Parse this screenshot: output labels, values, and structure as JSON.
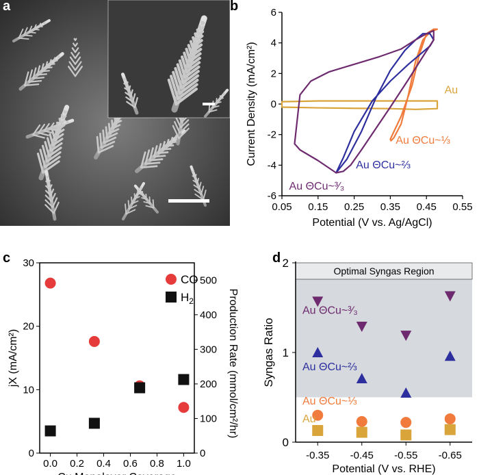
{
  "panels": {
    "a": {
      "letter": "a"
    },
    "b": {
      "letter": "b"
    },
    "c": {
      "letter": "c"
    },
    "d": {
      "letter": "d"
    }
  },
  "colors": {
    "au": "#d9a43a",
    "cu13": "#f07b3c",
    "cu23": "#2e2f9e",
    "cu33": "#6d2a6e",
    "co": "#e63b3b",
    "h2": "#111111",
    "region": "#d6d9dd"
  },
  "chart_data": [
    {
      "type": "line",
      "panel": "b",
      "xlabel": "Potential (V vs. Ag/AgCl)",
      "ylabel": "Current Density (mA/cm²)",
      "xlim": [
        0.05,
        0.55
      ],
      "ylim": [
        -6,
        6
      ],
      "xticks": [
        "0.05",
        "0.15",
        "0.25",
        "0.35",
        "0.45",
        "0.55"
      ],
      "yticks": [
        "-6",
        "-4",
        "-2",
        "0",
        "2",
        "4",
        "6"
      ],
      "annotations": [
        "Au",
        "Au ΘCu~⅓",
        "Au ΘCu~⅔",
        "Au ΘCu~³⁄₃"
      ],
      "series": [
        {
          "label": "Au",
          "color_key": "au",
          "x": [
            0.05,
            0.15,
            0.25,
            0.35,
            0.42,
            0.48,
            0.48,
            0.42,
            0.35,
            0.25,
            0.15,
            0.05
          ],
          "y": [
            0.15,
            0.2,
            0.2,
            0.2,
            0.2,
            0.2,
            -0.3,
            -0.35,
            -0.3,
            -0.28,
            -0.25,
            -0.2
          ]
        },
        {
          "label": "Au ΘCu~⅓",
          "color_key": "cu13",
          "x": [
            0.35,
            0.38,
            0.41,
            0.43,
            0.45,
            0.47,
            0.48,
            0.46,
            0.44,
            0.42,
            0.4,
            0.38,
            0.36,
            0.352
          ],
          "y": [
            -2.3,
            -0.8,
            1.2,
            3.2,
            4.6,
            4.9,
            4.9,
            4.7,
            4.2,
            2.8,
            0.6,
            -1.3,
            -2.2,
            -2.4
          ]
        },
        {
          "label": "Au ΘCu~⅔",
          "color_key": "cu23",
          "x": [
            0.2,
            0.23,
            0.27,
            0.31,
            0.35,
            0.39,
            0.42,
            0.44,
            0.46,
            0.47,
            0.46,
            0.44,
            0.4,
            0.35,
            0.3,
            0.25,
            0.22,
            0.2
          ],
          "y": [
            -4.5,
            -3.6,
            -1.8,
            0.4,
            2.2,
            3.5,
            4.2,
            4.6,
            4.6,
            4.2,
            3.8,
            3.4,
            2.6,
            1.5,
            0.2,
            -1.8,
            -3.5,
            -4.5
          ]
        },
        {
          "label": "Au ΘCu~³⁄₃",
          "color_key": "cu33",
          "x": [
            0.2,
            0.15,
            0.1,
            0.085,
            0.1,
            0.13,
            0.18,
            0.25,
            0.32,
            0.38,
            0.42,
            0.45,
            0.47,
            0.47,
            0.44,
            0.4,
            0.35,
            0.31,
            0.27,
            0.24,
            0.22,
            0.2
          ],
          "y": [
            -4.5,
            -3.7,
            -3.0,
            -2.6,
            0.6,
            1.5,
            2.1,
            2.6,
            3.1,
            3.6,
            4.2,
            4.6,
            4.8,
            4.2,
            3.1,
            1.6,
            -0.2,
            -1.6,
            -3.0,
            -4.0,
            -4.4,
            -4.5
          ]
        }
      ]
    },
    {
      "type": "scatter",
      "panel": "c",
      "xlabel": "Cu Monolayer Coverage",
      "ylabel_left": "jX (mA/cm²)",
      "ylabel_right": "Production Rate (mmol/cm²/hr)",
      "xlim": [
        -0.08,
        1.08
      ],
      "ylim_left": [
        0,
        30
      ],
      "ylim_right": [
        0,
        550
      ],
      "xticks": [
        "0.0",
        "0.2",
        "0.4",
        "0.6",
        "0.8",
        "1.0"
      ],
      "yticks_left": [
        "0",
        "10",
        "20",
        "30"
      ],
      "yticks_right": [
        "0",
        "100",
        "200",
        "300",
        "400",
        "500"
      ],
      "series": [
        {
          "name": "CO",
          "color_key": "co",
          "marker": "circle",
          "x": [
            0.0,
            0.33,
            0.67,
            1.0
          ],
          "y": [
            26.8,
            17.6,
            10.6,
            7.2
          ]
        },
        {
          "name": "H2",
          "color_key": "h2",
          "marker": "square",
          "x": [
            0.0,
            0.33,
            0.67,
            1.0
          ],
          "y": [
            3.5,
            4.7,
            10.3,
            11.6
          ]
        }
      ],
      "legend": [
        {
          "label": "CO"
        },
        {
          "label": "H",
          "sub": "2"
        }
      ]
    },
    {
      "type": "scatter",
      "panel": "d",
      "xlabel": "Potential (V vs. RHE)",
      "ylabel": "Syngas Ratio",
      "categories": [
        "-0.35",
        "-0.45",
        "-0.55",
        "-0.65"
      ],
      "ylim": [
        0,
        2
      ],
      "yticks": [
        "0",
        "1",
        "2"
      ],
      "region": {
        "label": "Optimal Syngas Region",
        "y0": 0.5,
        "y1": 2.0
      },
      "series": [
        {
          "name": "Au ΘCu~³⁄₃",
          "color_key": "cu33",
          "marker": "triangle-down",
          "values": [
            1.57,
            1.29,
            1.19,
            1.63
          ]
        },
        {
          "name": "Au ΘCu~⅔",
          "color_key": "cu23",
          "marker": "triangle-up",
          "values": [
            1.0,
            0.71,
            0.55,
            0.96
          ]
        },
        {
          "name": "Au ΘCu~⅓",
          "color_key": "cu13",
          "marker": "circle",
          "values": [
            0.3,
            0.23,
            0.22,
            0.26
          ]
        },
        {
          "name": "Au",
          "color_key": "au",
          "marker": "square",
          "values": [
            0.13,
            0.11,
            0.08,
            0.14
          ]
        }
      ]
    }
  ]
}
